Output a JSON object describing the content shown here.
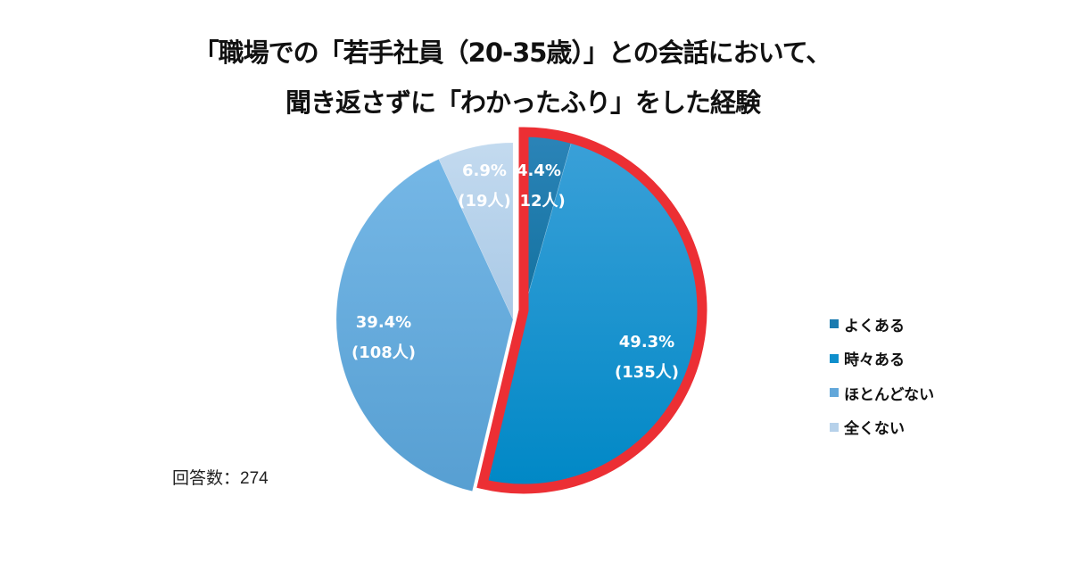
{
  "chart_data": {
    "type": "pie",
    "title": "「職場での「若手社員（20-35歳）」との会話において、聞き返さずに「わかったふり」をした経験",
    "categories": [
      "よくある",
      "時々ある",
      "ほとんどない",
      "全くない"
    ],
    "values": [
      4.4,
      49.3,
      39.4,
      6.9
    ],
    "counts": [
      12,
      135,
      108,
      19
    ],
    "unit": "%",
    "data_labels": [
      "4.4% (12人)",
      "49.3% (135人)",
      "39.4% (108人)",
      "6.9% (19人)"
    ],
    "highlighted": [
      "よくある",
      "時々ある"
    ],
    "start_angle_deg": 0,
    "direction": "clockwise",
    "legend_position": "right",
    "n": 274
  },
  "title": {
    "line1": "「職場での「若手社員（20-35歳）」との会話において、",
    "line2": "聞き返さずに「わかったふり」をした経験"
  },
  "slices": [
    {
      "label": "よくある",
      "pct": "4.4%",
      "count": "(12人)",
      "color": "#1a7bb0"
    },
    {
      "label": "時々ある",
      "pct": "49.3%",
      "count": "(135人)",
      "color": "#0f8fcc"
    },
    {
      "label": "ほとんどない",
      "pct": "39.4%",
      "count": "(108人)",
      "color": "#62a7da"
    },
    {
      "label": "全くない",
      "pct": "6.9%",
      "count": "(19人)",
      "color": "#b6d1ea"
    }
  ],
  "highlight_color": "#ec2f34",
  "footer": {
    "respondents": "回答数：274"
  }
}
